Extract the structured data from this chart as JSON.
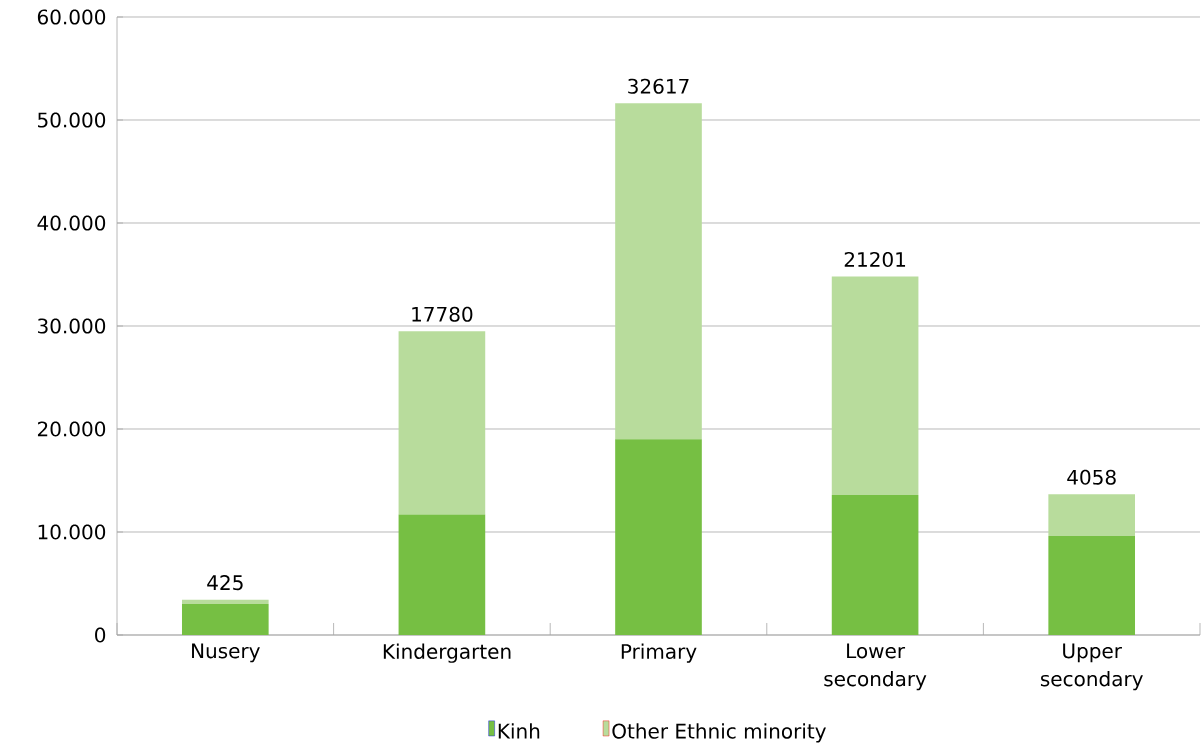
{
  "chart_data": {
    "type": "bar",
    "stacked": true,
    "categories": [
      "Nusery",
      "Kindergarten",
      "Primary",
      "Lower secondary",
      "Upper secondary"
    ],
    "series": [
      {
        "name": "Kinh",
        "color": "#76bf43",
        "values": [
          3000,
          11700,
          19000,
          13600,
          9600
        ]
      },
      {
        "name": "Other Ethnic minority",
        "color": "#b8dc9c",
        "values": [
          425,
          17780,
          32617,
          21201,
          4058
        ],
        "value_labels": [
          "425",
          "17780",
          "32617",
          "21201",
          "4058"
        ]
      }
    ],
    "ylim": [
      0,
      60000
    ],
    "yticks": [
      0,
      {
        "value": 10000,
        "label": "10.000"
      },
      {
        "value": 20000,
        "label": "20.000"
      },
      {
        "value": 30000,
        "label": "30.000"
      },
      {
        "value": 40000,
        "label": "40.000"
      },
      {
        "value": 50000,
        "label": "50.000"
      },
      {
        "value": 60000,
        "label": "60.000"
      }
    ],
    "grid": "y",
    "legend": "bottom"
  }
}
